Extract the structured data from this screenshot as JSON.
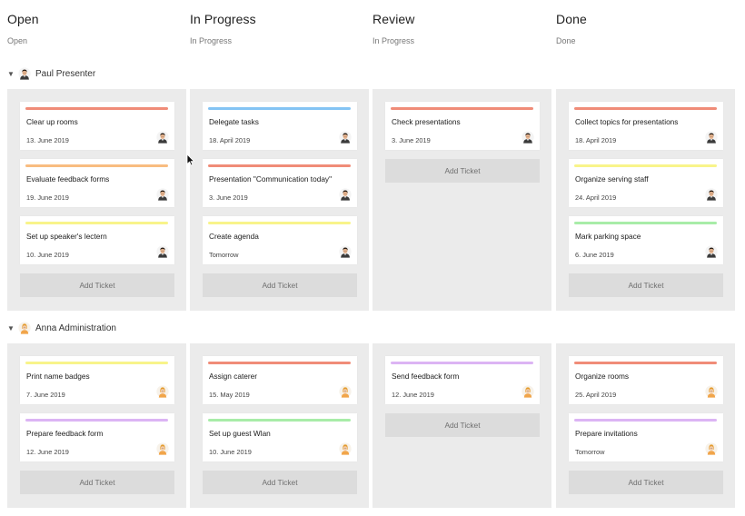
{
  "columns": [
    {
      "title": "Open",
      "subtitle": "Open"
    },
    {
      "title": "In Progress",
      "subtitle": "In Progress"
    },
    {
      "title": "Review",
      "subtitle": "In Progress"
    },
    {
      "title": "Done",
      "subtitle": "Done"
    }
  ],
  "add_label": "Add Ticket",
  "icons": {
    "collapse": "caret-down-icon",
    "avatar_male": "male-avatar-icon",
    "avatar_female": "female-avatar-icon",
    "cursor": "mouse-pointer-icon"
  },
  "colors": {
    "red": "#f08c78",
    "orange": "#f8bc80",
    "yellow": "#f8f48a",
    "blue": "#84c4f4",
    "green": "#a8eca8",
    "purple": "#dcb4f4"
  },
  "lanes": [
    {
      "name": "Paul Presenter",
      "avatar": "male",
      "cols": [
        [
          {
            "title": "Clear up rooms",
            "date": "13. June 2019",
            "color": "#f08c78"
          },
          {
            "title": "Evaluate feedback forms",
            "date": "19. June 2019",
            "color": "#f8bc80"
          },
          {
            "title": "Set up speaker's lectern",
            "date": "10. June 2019",
            "color": "#f8f48a"
          }
        ],
        [
          {
            "title": "Delegate tasks",
            "date": "18. April 2019",
            "color": "#84c4f4"
          },
          {
            "title": "Presentation \"Communication today\"",
            "date": "3. June 2019",
            "color": "#f08c78"
          },
          {
            "title": "Create agenda",
            "date": "Tomorrow",
            "color": "#f8f48a"
          }
        ],
        [
          {
            "title": "Check presentations",
            "date": "3. June 2019",
            "color": "#f08c78"
          }
        ],
        [
          {
            "title": "Collect topics for presentations",
            "date": "18. April 2019",
            "color": "#f08c78"
          },
          {
            "title": "Organize serving staff",
            "date": "24. April 2019",
            "color": "#f8f48a"
          },
          {
            "title": "Mark parking space",
            "date": "6. June 2019",
            "color": "#a8eca8"
          }
        ]
      ]
    },
    {
      "name": "Anna Administration",
      "avatar": "female",
      "cols": [
        [
          {
            "title": "Print name badges",
            "date": "7. June 2019",
            "color": "#f8f48a"
          },
          {
            "title": "Prepare feedback form",
            "date": "12. June 2019",
            "color": "#dcb4f4"
          }
        ],
        [
          {
            "title": "Assign caterer",
            "date": "15. May 2019",
            "color": "#f08c78"
          },
          {
            "title": "Set up guest Wlan",
            "date": "10. June 2019",
            "color": "#a8eca8"
          }
        ],
        [
          {
            "title": "Send feedback form",
            "date": "12. June 2019",
            "color": "#dcb4f4"
          }
        ],
        [
          {
            "title": "Organize rooms",
            "date": "25. April 2019",
            "color": "#f08c78"
          },
          {
            "title": "Prepare invitations",
            "date": "Tomorrow",
            "color": "#dcb4f4"
          }
        ]
      ]
    }
  ]
}
